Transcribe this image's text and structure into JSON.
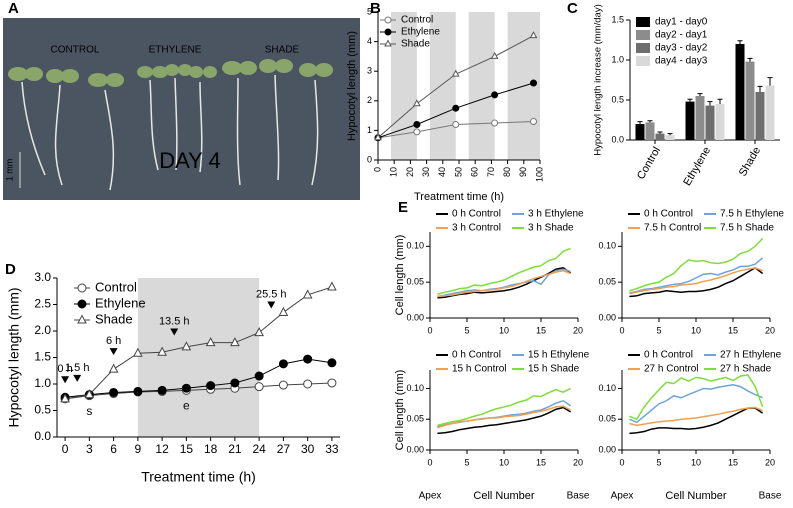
{
  "photo": {
    "panel_label": "A",
    "labels": [
      "CONTROL",
      "ETHYLENE",
      "SHADE"
    ],
    "day": "DAY 4",
    "scale": "1 mm"
  },
  "chart_data": [
    {
      "panel_label": "B",
      "type": "line",
      "xlabel": "Treatment time (h)",
      "ylabel": "Hypocotyl length (mm)",
      "xlim": [
        0,
        100
      ],
      "xticks": [
        0,
        10,
        20,
        30,
        40,
        50,
        60,
        70,
        80,
        90,
        100
      ],
      "ylim": [
        0,
        5
      ],
      "yticks": [
        0,
        1,
        2,
        3,
        4,
        5
      ],
      "shaded_x": [
        [
          8,
          24
        ],
        [
          32,
          48
        ],
        [
          56,
          72
        ],
        [
          80,
          100
        ]
      ],
      "x": [
        0,
        24,
        48,
        72,
        96
      ],
      "series": [
        {
          "name": "Control",
          "color": "#777777",
          "marker": "open-circle",
          "values": [
            0.75,
            0.95,
            1.2,
            1.25,
            1.3
          ]
        },
        {
          "name": "Ethylene",
          "color": "#000000",
          "marker": "filled-circle",
          "values": [
            0.75,
            1.2,
            1.75,
            2.2,
            2.6
          ]
        },
        {
          "name": "Shade",
          "color": "#555555",
          "marker": "open-triangle",
          "values": [
            0.75,
            1.9,
            2.9,
            3.5,
            4.2
          ]
        }
      ]
    },
    {
      "panel_label": "C",
      "type": "bar",
      "ylabel": "Hypocotyl length increase (mm/day)",
      "categories": [
        "Control",
        "Ethylene",
        "Shade"
      ],
      "ylim": [
        0,
        1.5
      ],
      "yticks": [
        {
          "value": 0,
          "label": "0.0"
        },
        {
          "value": 0.5,
          "label": "0.5"
        },
        {
          "value": 1,
          "label": "1.0"
        },
        {
          "value": 1.5,
          "label": "1.5"
        }
      ],
      "series": [
        {
          "name": "day1 - day0",
          "color": "#000000",
          "values": [
            0.2,
            0.48,
            1.2
          ],
          "errors": [
            0.03,
            0.03,
            0.04
          ]
        },
        {
          "name": "day2 - day1",
          "color": "#8c8c8c",
          "values": [
            0.22,
            0.55,
            0.98
          ],
          "errors": [
            0.02,
            0.03,
            0.04
          ]
        },
        {
          "name": "day3 - day2",
          "color": "#6e6e6e",
          "values": [
            0.08,
            0.43,
            0.6
          ],
          "errors": [
            0.02,
            0.05,
            0.07
          ]
        },
        {
          "name": "day4 - day3",
          "color": "#d9d9d9",
          "values": [
            0.06,
            0.45,
            0.68
          ],
          "errors": [
            0.02,
            0.06,
            0.1
          ]
        }
      ]
    },
    {
      "panel_label": "D",
      "type": "line",
      "xlabel": "Treatment time (h)",
      "ylabel": "Hypocotyl length (mm)",
      "xlim": [
        -1,
        34
      ],
      "xticks": [
        0,
        3,
        6,
        9,
        12,
        15,
        18,
        21,
        24,
        27,
        30,
        33
      ],
      "ylim": [
        0,
        3
      ],
      "yticks": [
        {
          "value": 0,
          "label": "0.0"
        },
        {
          "value": 0.5,
          "label": "0.5"
        },
        {
          "value": 1,
          "label": "1.0"
        },
        {
          "value": 1.5,
          "label": "1.5"
        },
        {
          "value": 2,
          "label": "2.0"
        },
        {
          "value": 2.5,
          "label": "2.5"
        },
        {
          "value": 3,
          "label": "3.0"
        }
      ],
      "shaded_x": [
        [
          9,
          24
        ]
      ],
      "x": [
        0,
        3,
        6,
        9,
        12,
        15,
        18,
        21,
        24,
        27,
        30,
        33
      ],
      "series": [
        {
          "name": "Control",
          "color": "#444444",
          "marker": "open-circle",
          "values": [
            0.72,
            0.78,
            0.82,
            0.85,
            0.86,
            0.88,
            0.9,
            0.92,
            0.95,
            0.98,
            1.0,
            1.02
          ]
        },
        {
          "name": "Ethylene",
          "color": "#000000",
          "marker": "filled-circle",
          "values": [
            0.75,
            0.8,
            0.84,
            0.86,
            0.88,
            0.92,
            0.97,
            1.02,
            1.15,
            1.38,
            1.47,
            1.4
          ]
        },
        {
          "name": "Shade",
          "color": "#444444",
          "marker": "open-triangle",
          "values": [
            0.72,
            0.8,
            1.28,
            1.58,
            1.6,
            1.7,
            1.78,
            1.78,
            1.97,
            2.35,
            2.68,
            2.83
          ]
        }
      ],
      "arrows": [
        {
          "text": "0 h",
          "x": 0
        },
        {
          "text": "1.5 h",
          "x": 1.5
        },
        {
          "text": "6 h",
          "x": 6
        },
        {
          "text": "13.5 h",
          "x": 13.5
        },
        {
          "text": "25.5 h",
          "x": 25.5
        }
      ],
      "point_notes": [
        {
          "text": "s",
          "x": 3
        },
        {
          "text": "e",
          "x": 15
        }
      ]
    },
    {
      "panel_label": "E",
      "type": "line",
      "ylabel": "Cell length (mm)",
      "xlim": [
        0,
        20
      ],
      "xticks": [
        0,
        5,
        10,
        15,
        20
      ],
      "ylim": [
        0,
        0.12
      ],
      "yticks": [
        {
          "value": 0,
          "label": "0.00"
        },
        {
          "value": 0.05,
          "label": "0.05"
        },
        {
          "value": 0.1,
          "label": "0.10"
        }
      ],
      "x": [
        1,
        2,
        3,
        4,
        5,
        6,
        7,
        8,
        9,
        10,
        11,
        12,
        13,
        14,
        15,
        16,
        17,
        18,
        19
      ],
      "series": [
        {
          "name": "0 h Control",
          "color": "#000000",
          "values": [
            0.028,
            0.029,
            0.031,
            0.033,
            0.034,
            0.036,
            0.035,
            0.036,
            0.037,
            0.038,
            0.04,
            0.043,
            0.047,
            0.052,
            0.057,
            0.062,
            0.068,
            0.07,
            0.063
          ]
        },
        {
          "name": "3 h Ethylene",
          "color": "#6fa3dd",
          "values": [
            0.03,
            0.032,
            0.034,
            0.036,
            0.038,
            0.039,
            0.038,
            0.04,
            0.041,
            0.043,
            0.046,
            0.048,
            0.05,
            0.052,
            0.047,
            0.06,
            0.066,
            0.068,
            0.065
          ]
        },
        {
          "name": "3 h Control",
          "color": "#f0a050",
          "values": [
            0.03,
            0.031,
            0.032,
            0.034,
            0.036,
            0.037,
            0.038,
            0.039,
            0.04,
            0.042,
            0.044,
            0.047,
            0.051,
            0.055,
            0.058,
            0.061,
            0.064,
            0.066,
            0.062
          ]
        },
        {
          "name": "3 h Shade",
          "color": "#7fdc3a",
          "values": [
            0.033,
            0.036,
            0.038,
            0.041,
            0.042,
            0.046,
            0.045,
            0.048,
            0.05,
            0.053,
            0.058,
            0.063,
            0.067,
            0.071,
            0.073,
            0.08,
            0.083,
            0.093,
            0.097
          ]
        }
      ]
    },
    {
      "type": "line",
      "xlim": [
        0,
        20
      ],
      "xticks": [
        0,
        5,
        10,
        15,
        20
      ],
      "ylim": [
        0,
        0.12
      ],
      "yticks": [
        {
          "value": 0,
          "label": "0.00"
        },
        {
          "value": 0.05,
          "label": "0.05"
        },
        {
          "value": 0.1,
          "label": "0.10"
        }
      ],
      "x": [
        1,
        2,
        3,
        4,
        5,
        6,
        7,
        8,
        9,
        10,
        11,
        12,
        13,
        14,
        15,
        16,
        17,
        18,
        19
      ],
      "series": [
        {
          "name": "0 h Control",
          "color": "#000000",
          "values": [
            0.03,
            0.031,
            0.034,
            0.035,
            0.036,
            0.038,
            0.037,
            0.036,
            0.037,
            0.037,
            0.038,
            0.04,
            0.043,
            0.048,
            0.052,
            0.058,
            0.064,
            0.07,
            0.062
          ]
        },
        {
          "name": "7.5 h Ethylene",
          "color": "#6fa3dd",
          "values": [
            0.035,
            0.037,
            0.04,
            0.041,
            0.043,
            0.045,
            0.047,
            0.048,
            0.051,
            0.056,
            0.061,
            0.062,
            0.06,
            0.064,
            0.067,
            0.072,
            0.072,
            0.075,
            0.084
          ]
        },
        {
          "name": "7.5 h Control",
          "color": "#f0a050",
          "values": [
            0.034,
            0.036,
            0.038,
            0.04,
            0.041,
            0.043,
            0.044,
            0.046,
            0.047,
            0.048,
            0.051,
            0.053,
            0.056,
            0.059,
            0.063,
            0.066,
            0.068,
            0.07,
            0.066
          ]
        },
        {
          "name": "7.5 h Shade",
          "color": "#7fdc3a",
          "values": [
            0.038,
            0.041,
            0.045,
            0.048,
            0.05,
            0.057,
            0.062,
            0.073,
            0.081,
            0.079,
            0.08,
            0.077,
            0.076,
            0.078,
            0.082,
            0.09,
            0.093,
            0.1,
            0.111
          ]
        }
      ]
    },
    {
      "type": "line",
      "ylabel": "Cell length (mm)",
      "xlabel": "Cell Number",
      "start_label": "Apex",
      "end_label": "Base",
      "xlim": [
        0,
        20
      ],
      "xticks": [
        0,
        5,
        10,
        15,
        20
      ],
      "ylim": [
        0,
        0.13
      ],
      "yticks": [
        {
          "value": 0,
          "label": "0.00"
        },
        {
          "value": 0.05,
          "label": "0.05"
        },
        {
          "value": 0.1,
          "label": "0.10"
        }
      ],
      "x": [
        1,
        2,
        3,
        4,
        5,
        6,
        7,
        8,
        9,
        10,
        11,
        12,
        13,
        14,
        15,
        16,
        17,
        18,
        19
      ],
      "series": [
        {
          "name": "0 h Control",
          "color": "#000000",
          "values": [
            0.027,
            0.028,
            0.03,
            0.033,
            0.035,
            0.037,
            0.038,
            0.04,
            0.041,
            0.043,
            0.045,
            0.047,
            0.049,
            0.052,
            0.055,
            0.06,
            0.066,
            0.069,
            0.062
          ]
        },
        {
          "name": "15 h Ethylene",
          "color": "#6fa3dd",
          "values": [
            0.038,
            0.041,
            0.043,
            0.045,
            0.047,
            0.049,
            0.051,
            0.052,
            0.053,
            0.055,
            0.057,
            0.058,
            0.06,
            0.063,
            0.065,
            0.07,
            0.076,
            0.08,
            0.072
          ]
        },
        {
          "name": "15 h Control",
          "color": "#f0a050",
          "values": [
            0.036,
            0.04,
            0.043,
            0.046,
            0.047,
            0.049,
            0.05,
            0.052,
            0.052,
            0.054,
            0.055,
            0.056,
            0.058,
            0.061,
            0.063,
            0.066,
            0.07,
            0.071,
            0.065
          ]
        },
        {
          "name": "15 h Shade",
          "color": "#7fdc3a",
          "values": [
            0.04,
            0.043,
            0.046,
            0.048,
            0.051,
            0.055,
            0.058,
            0.063,
            0.067,
            0.07,
            0.073,
            0.078,
            0.081,
            0.088,
            0.087,
            0.093,
            0.098,
            0.094,
            0.1
          ]
        }
      ]
    },
    {
      "type": "line",
      "xlabel": "Cell Number",
      "start_label": "Apex",
      "end_label": "Base",
      "xlim": [
        0,
        20
      ],
      "xticks": [
        0,
        5,
        10,
        15,
        20
      ],
      "ylim": [
        0,
        0.13
      ],
      "yticks": [
        {
          "value": 0,
          "label": "0.00"
        },
        {
          "value": 0.05,
          "label": "0.05"
        },
        {
          "value": 0.1,
          "label": "0.10"
        }
      ],
      "x": [
        1,
        2,
        3,
        4,
        5,
        6,
        7,
        8,
        9,
        10,
        11,
        12,
        13,
        14,
        15,
        16,
        17,
        18,
        19
      ],
      "series": [
        {
          "name": "0 h Control",
          "color": "#000000",
          "values": [
            0.027,
            0.028,
            0.03,
            0.034,
            0.036,
            0.036,
            0.035,
            0.035,
            0.034,
            0.035,
            0.037,
            0.04,
            0.044,
            0.05,
            0.056,
            0.062,
            0.068,
            0.068,
            0.06
          ]
        },
        {
          "name": "27 h Ethylene",
          "color": "#6fa3dd",
          "values": [
            0.05,
            0.045,
            0.055,
            0.065,
            0.075,
            0.08,
            0.088,
            0.085,
            0.09,
            0.095,
            0.1,
            0.099,
            0.102,
            0.104,
            0.106,
            0.103,
            0.096,
            0.09,
            0.085
          ]
        },
        {
          "name": "27 h Control",
          "color": "#f0a050",
          "values": [
            0.043,
            0.04,
            0.042,
            0.044,
            0.046,
            0.047,
            0.048,
            0.05,
            0.051,
            0.052,
            0.054,
            0.056,
            0.058,
            0.061,
            0.063,
            0.066,
            0.068,
            0.069,
            0.064
          ]
        },
        {
          "name": "27 h Shade",
          "color": "#7fdc3a",
          "values": [
            0.055,
            0.05,
            0.07,
            0.085,
            0.098,
            0.11,
            0.108,
            0.117,
            0.112,
            0.118,
            0.116,
            0.112,
            0.115,
            0.118,
            0.113,
            0.12,
            0.122,
            0.103,
            0.07
          ]
        }
      ]
    }
  ]
}
